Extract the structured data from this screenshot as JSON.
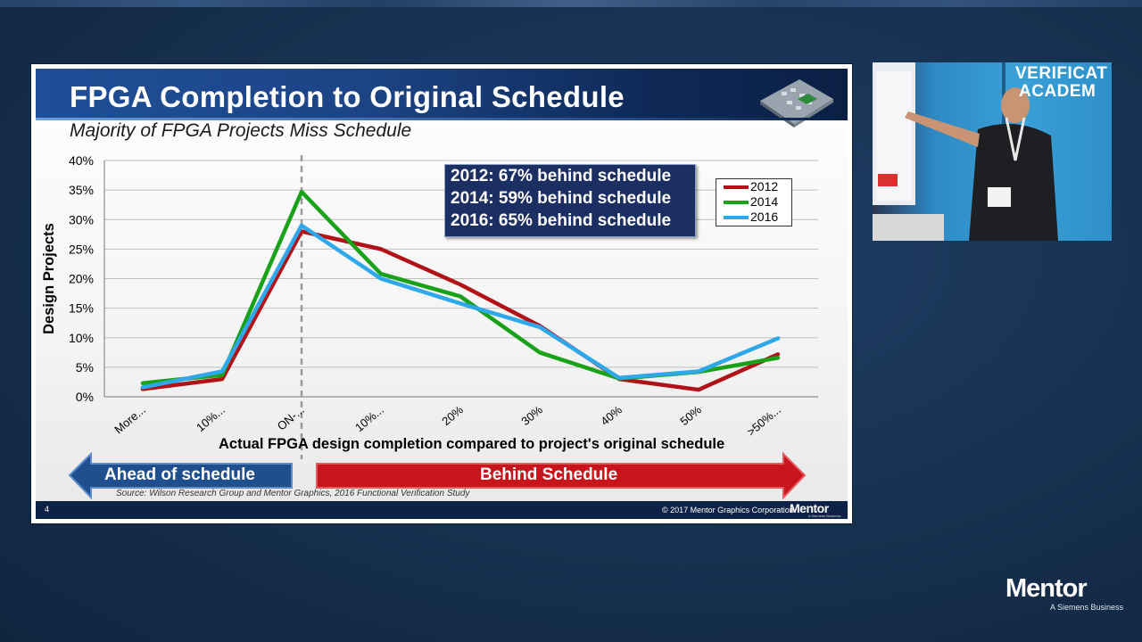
{
  "slide": {
    "title": "FPGA Completion to Original Schedule",
    "subtitle": "Majority of FPGA Projects Miss Schedule",
    "annotations": [
      "2012: 67% behind schedule",
      "2014: 59% behind schedule",
      "2016: 65% behind schedule"
    ],
    "ahead_label": "Ahead of schedule",
    "behind_label": "Behind Schedule",
    "source": "Source: Wilson Research Group and Mentor Graphics, 2016 Functional Verification Study",
    "slide_number": "4",
    "copyright": "© 2017 Mentor Graphics Corporation",
    "footer_logo": "Mentor",
    "footer_logo_sub": "A Siemens Business"
  },
  "chart_data": {
    "type": "line",
    "categories": [
      "More...",
      "10%...",
      "ON-...",
      "10%...",
      "20%",
      "30%",
      "40%",
      "50%",
      ">50%..."
    ],
    "series": [
      {
        "name": "2012",
        "color": "#b01218",
        "values": [
          1.3,
          3.0,
          28.0,
          25.0,
          19.0,
          12.0,
          3.0,
          1.2,
          7.2
        ]
      },
      {
        "name": "2014",
        "color": "#1aa11a",
        "values": [
          2.3,
          3.7,
          34.7,
          20.8,
          17.0,
          7.5,
          3.1,
          4.2,
          6.6
        ]
      },
      {
        "name": "2016",
        "color": "#2ea8ea",
        "values": [
          1.6,
          4.3,
          29.0,
          20.0,
          15.8,
          11.8,
          3.2,
          4.3,
          9.9
        ]
      }
    ],
    "yticks": [
      "0%",
      "5%",
      "10%",
      "15%",
      "20%",
      "25%",
      "30%",
      "35%",
      "40%"
    ],
    "ylim": [
      0,
      40
    ],
    "ylabel": "Design Projects",
    "xlabel": "Actual FPGA design completion compared to project's original schedule",
    "grid": true,
    "legend_position": "top-right",
    "reference_category": "ON-..."
  },
  "video": {
    "sign_line1": "VERIFICAT",
    "sign_line2": "ACADEM"
  },
  "brand": {
    "name": "Mentor",
    "tagline": "A Siemens Business"
  }
}
